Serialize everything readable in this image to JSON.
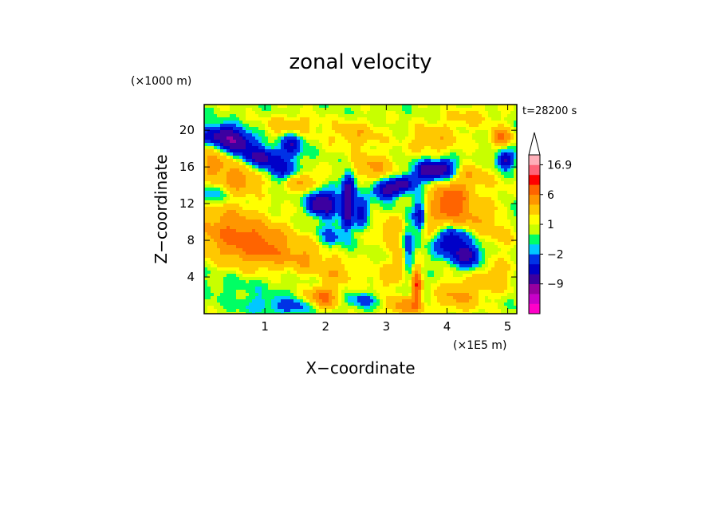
{
  "chart_data": {
    "type": "heatmap",
    "title": "zonal velocity",
    "xlabel": "X−coordinate",
    "ylabel": "Z−coordinate",
    "x_unit": "(×1E5 m)",
    "y_unit": "(×1000 m)",
    "time_label": "t=28200 s",
    "x_range": [
      0,
      5.15
    ],
    "y_range": [
      0,
      22.8
    ],
    "x_ticks": [
      "1",
      "2",
      "3",
      "4",
      "5"
    ],
    "x_tick_values": [
      1,
      2,
      3,
      4,
      5
    ],
    "y_ticks": [
      "4",
      "8",
      "12",
      "16",
      "20"
    ],
    "y_tick_values": [
      4,
      8,
      12,
      16,
      20
    ],
    "colorbar": {
      "levels": [
        -18,
        -13,
        -9,
        -6,
        -4,
        -2,
        -1,
        0,
        1,
        2,
        4,
        6,
        9,
        13,
        16.9
      ],
      "labels": [
        {
          "text": "16.9",
          "value": 16.9
        },
        {
          "text": "6",
          "value": 6
        },
        {
          "text": "1",
          "value": 1
        },
        {
          "text": "−2",
          "value": -2
        },
        {
          "text": "−9",
          "value": -9
        }
      ],
      "colors": [
        "#ff00c8",
        "#c800c8",
        "#9600a0",
        "#3c00a0",
        "#0000c8",
        "#0032e6",
        "#00c8ff",
        "#00ff64",
        "#c8ff00",
        "#ffff00",
        "#ffc800",
        "#ff9600",
        "#ff6400",
        "#ff0000",
        "#ff6478",
        "#ffafb9"
      ],
      "extend": "max"
    },
    "field": {
      "background_value": 0.5,
      "features": [
        {
          "x": 0.25,
          "z": 19.5,
          "value": -7,
          "sx": 0.22,
          "sz": 0.8
        },
        {
          "x": 0.55,
          "z": 18.5,
          "value": -8,
          "sx": 0.2,
          "sz": 0.9
        },
        {
          "x": 0.95,
          "z": 17.0,
          "value": -7,
          "sx": 0.25,
          "sz": 0.8
        },
        {
          "x": 1.3,
          "z": 15.5,
          "value": -5,
          "sx": 0.2,
          "sz": 0.8
        },
        {
          "x": 1.45,
          "z": 18.5,
          "value": -6,
          "sx": 0.12,
          "sz": 0.9
        },
        {
          "x": 1.45,
          "z": 20.5,
          "value": 3,
          "sx": 0.3,
          "sz": 0.8
        },
        {
          "x": 0.2,
          "z": 16.5,
          "value": 4,
          "sx": 0.35,
          "sz": 1.2
        },
        {
          "x": 0.6,
          "z": 14.5,
          "value": 4,
          "sx": 0.3,
          "sz": 1.0
        },
        {
          "x": 0.1,
          "z": 13.0,
          "value": -3,
          "sx": 0.2,
          "sz": 0.8
        },
        {
          "x": 0.55,
          "z": 8.2,
          "value": 5,
          "sx": 0.45,
          "sz": 1.8
        },
        {
          "x": 1.05,
          "z": 7.0,
          "value": 4,
          "sx": 0.35,
          "sz": 1.5
        },
        {
          "x": 0.25,
          "z": 10.5,
          "value": 2,
          "sx": 0.4,
          "sz": 1.5
        },
        {
          "x": 0.5,
          "z": 3.0,
          "value": -1,
          "sx": 0.6,
          "sz": 1.0
        },
        {
          "x": 1.0,
          "z": 1.0,
          "value": -2,
          "sx": 0.35,
          "sz": 0.7
        },
        {
          "x": 1.85,
          "z": 12.0,
          "value": -8,
          "sx": 0.1,
          "sz": 0.9
        },
        {
          "x": 2.05,
          "z": 12.0,
          "value": -7,
          "sx": 0.1,
          "sz": 1.0
        },
        {
          "x": 2.35,
          "z": 11.5,
          "value": -9,
          "sx": 0.07,
          "sz": 1.6
        },
        {
          "x": 2.4,
          "z": 14.0,
          "value": -6,
          "sx": 0.07,
          "sz": 1.2
        },
        {
          "x": 2.6,
          "z": 11.0,
          "value": -6,
          "sx": 0.08,
          "sz": 1.0
        },
        {
          "x": 2.1,
          "z": 8.5,
          "value": -3,
          "sx": 0.15,
          "sz": 1.0
        },
        {
          "x": 1.95,
          "z": 1.8,
          "value": 6,
          "sx": 0.18,
          "sz": 0.8
        },
        {
          "x": 1.6,
          "z": 14.5,
          "value": 4,
          "sx": 0.2,
          "sz": 0.8
        },
        {
          "x": 1.7,
          "z": 6.0,
          "value": 3,
          "sx": 0.25,
          "sz": 1.2
        },
        {
          "x": 2.2,
          "z": 4.5,
          "value": 3,
          "sx": 0.2,
          "sz": 1.0
        },
        {
          "x": 2.75,
          "z": 16.0,
          "value": 4,
          "sx": 0.25,
          "sz": 1.0
        },
        {
          "x": 2.5,
          "z": 19.5,
          "value": 3,
          "sx": 0.3,
          "sz": 1.0
        },
        {
          "x": 3.0,
          "z": 13.5,
          "value": -8,
          "sx": 0.15,
          "sz": 0.7
        },
        {
          "x": 3.3,
          "z": 14.2,
          "value": -7,
          "sx": 0.12,
          "sz": 0.6
        },
        {
          "x": 3.35,
          "z": 7.0,
          "value": -4,
          "sx": 0.08,
          "sz": 2.5
        },
        {
          "x": 3.25,
          "z": 5.5,
          "value": 4,
          "sx": 0.08,
          "sz": 1.2
        },
        {
          "x": 3.3,
          "z": 0.8,
          "value": 5,
          "sx": 0.2,
          "sz": 0.7
        },
        {
          "x": 3.0,
          "z": 4.0,
          "value": 2,
          "sx": 0.25,
          "sz": 1.2
        },
        {
          "x": 3.1,
          "z": 9.0,
          "value": 3,
          "sx": 0.2,
          "sz": 1.2
        },
        {
          "x": 3.5,
          "z": 3.0,
          "value": 8,
          "sx": 0.05,
          "sz": 1.4
        },
        {
          "x": 3.55,
          "z": 10.5,
          "value": -6,
          "sx": 0.07,
          "sz": 1.4
        },
        {
          "x": 3.65,
          "z": 15.5,
          "value": -7,
          "sx": 0.15,
          "sz": 0.8
        },
        {
          "x": 3.95,
          "z": 15.8,
          "value": -7,
          "sx": 0.15,
          "sz": 0.8
        },
        {
          "x": 4.05,
          "z": 12.2,
          "value": 8,
          "sx": 0.22,
          "sz": 1.4
        },
        {
          "x": 3.9,
          "z": 9.5,
          "value": 4,
          "sx": 0.25,
          "sz": 1.0
        },
        {
          "x": 4.05,
          "z": 8.2,
          "value": -8,
          "sx": 0.18,
          "sz": 1.3
        },
        {
          "x": 4.35,
          "z": 6.3,
          "value": -7,
          "sx": 0.15,
          "sz": 0.9
        },
        {
          "x": 4.4,
          "z": 15.0,
          "value": 3,
          "sx": 0.2,
          "sz": 1.0
        },
        {
          "x": 4.45,
          "z": 10.5,
          "value": 3,
          "sx": 0.2,
          "sz": 1.0
        },
        {
          "x": 4.8,
          "z": 13.0,
          "value": 1,
          "sx": 0.25,
          "sz": 1.2
        },
        {
          "x": 4.95,
          "z": 16.8,
          "value": -7,
          "sx": 0.1,
          "sz": 0.7
        },
        {
          "x": 4.9,
          "z": 19.2,
          "value": 6,
          "sx": 0.12,
          "sz": 0.7
        },
        {
          "x": 4.2,
          "z": 2.0,
          "value": 4,
          "sx": 0.25,
          "sz": 1.2
        },
        {
          "x": 4.8,
          "z": 4.0,
          "value": 3,
          "sx": 0.2,
          "sz": 1.2
        },
        {
          "x": 4.85,
          "z": 9.0,
          "value": 2,
          "sx": 0.2,
          "sz": 1.5
        },
        {
          "x": 3.8,
          "z": 19.0,
          "value": 3,
          "sx": 0.3,
          "sz": 1.2
        },
        {
          "x": 4.4,
          "z": 21.5,
          "value": 2,
          "sx": 0.3,
          "sz": 0.8
        },
        {
          "x": 5.1,
          "z": 11.0,
          "value": -2,
          "sx": 0.08,
          "sz": 1.0
        },
        {
          "x": 2.6,
          "z": 1.5,
          "value": -3,
          "sx": 0.2,
          "sz": 0.6
        },
        {
          "x": 1.5,
          "z": 0.7,
          "value": -3,
          "sx": 0.2,
          "sz": 0.6
        }
      ]
    }
  }
}
